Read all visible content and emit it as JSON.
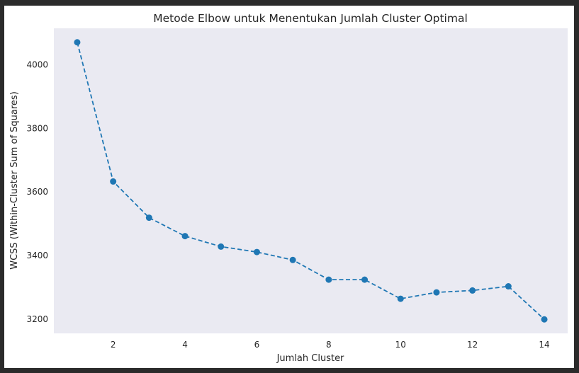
{
  "chart_data": {
    "type": "line",
    "title": "Metode Elbow untuk Menentukan Jumlah Cluster Optimal",
    "xlabel": "Jumlah Cluster",
    "ylabel": "WCSS (Within-Cluster Sum of Squares)",
    "x": [
      1,
      2,
      3,
      4,
      5,
      6,
      7,
      8,
      9,
      10,
      11,
      12,
      13,
      14
    ],
    "series": [
      {
        "values": [
          4071,
          3633,
          3519,
          3461,
          3428,
          3411,
          3386,
          3324,
          3324,
          3264,
          3284,
          3290,
          3303,
          3199
        ]
      }
    ],
    "xticks": [
      "2",
      "4",
      "6",
      "8",
      "10",
      "12",
      "14"
    ],
    "yticks": [
      "3200",
      "3400",
      "3600",
      "3800",
      "4000"
    ],
    "xlim": [
      0.35,
      14.65
    ],
    "ylim": [
      3155,
      4115
    ],
    "grid": false,
    "line_style": "dashed",
    "marker": "circle",
    "colors": {
      "line": "#1f77b4",
      "plot_background": "#eaeaf2",
      "figure_background": "#ffffff",
      "outer_background": "#2b2b2b"
    }
  }
}
